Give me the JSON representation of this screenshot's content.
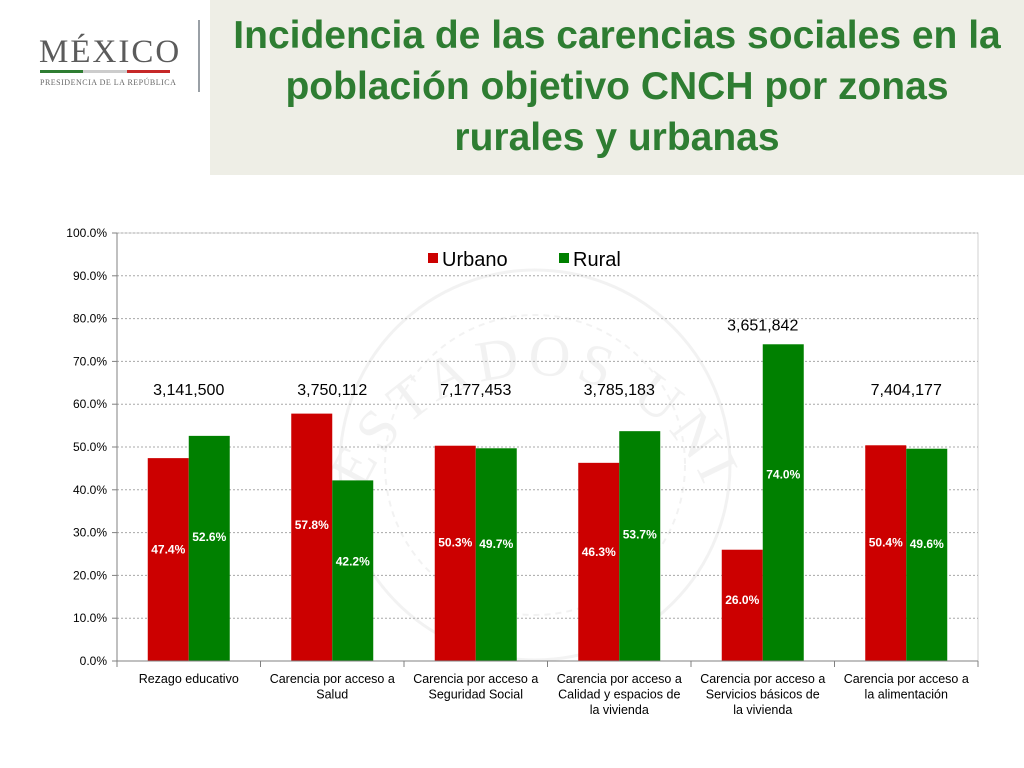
{
  "logo": {
    "text": "MÉXICO",
    "subtitle": "PRESIDENCIA DE LA REPÚBLICA",
    "stripe_colors": [
      "#2e7d32",
      "#cccccc",
      "#c62828"
    ]
  },
  "title": "Incidencia de las carencias sociales en la población objetivo CNCH por zonas rurales y urbanas",
  "watermark": {
    "text": "ESTADOS UNIDOS MEXICANOS",
    "description": "coat of arms seal, faint grey"
  },
  "chart_data": {
    "type": "bar",
    "categories": [
      [
        "Rezago educativo"
      ],
      [
        "Carencia por acceso a",
        "Salud"
      ],
      [
        "Carencia por acceso a",
        "Seguridad Social"
      ],
      [
        "Carencia por acceso a",
        "Calidad y espacios de",
        "la vivienda"
      ],
      [
        "Carencia por acceso a",
        "Servicios básicos de",
        "la vivienda"
      ],
      [
        "Carencia por acceso a",
        "la alimentación"
      ]
    ],
    "series": [
      {
        "name": "Urbano",
        "color": "#cc0000",
        "values": [
          47.4,
          57.8,
          50.3,
          46.3,
          26.0,
          50.4
        ],
        "labels": [
          "47.4%",
          "57.8%",
          "50.3%",
          "46.3%",
          "26.0%",
          "50.4%"
        ]
      },
      {
        "name": "Rural",
        "color": "#008000",
        "values": [
          52.6,
          42.2,
          49.7,
          53.7,
          74.0,
          49.6
        ],
        "labels": [
          "52.6%",
          "42.2%",
          "49.7%",
          "53.7%",
          "74.0%",
          "49.6%"
        ]
      }
    ],
    "totals": [
      "3,141,500",
      "3,750,112",
      "7,177,453",
      "3,785,183",
      "3,651,842",
      "7,404,177"
    ],
    "yticks": [
      "0.0%",
      "10.0%",
      "20.0%",
      "30.0%",
      "40.0%",
      "50.0%",
      "60.0%",
      "70.0%",
      "80.0%",
      "90.0%",
      "100.0%"
    ],
    "ylim": [
      0,
      100
    ],
    "grid": true,
    "legend": "top-center"
  }
}
